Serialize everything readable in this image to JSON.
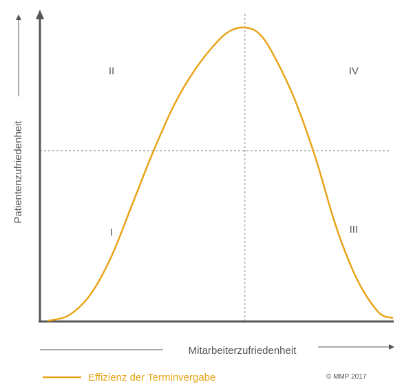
{
  "chart_data": {
    "type": "line",
    "ylabel": "Patientenzufriedenheit",
    "xlabel": "Mitarbeiterzufriedenheit",
    "xlim": [
      0,
      1
    ],
    "ylim": [
      0,
      1
    ],
    "grid": false,
    "reference_lines": {
      "x": 0.58,
      "y": 0.58
    },
    "series": [
      {
        "name": "Effizienz der Terminvergabe",
        "color": "#e8a317",
        "x": [
          0.02,
          0.08,
          0.14,
          0.2,
          0.26,
          0.32,
          0.38,
          0.44,
          0.5,
          0.54,
          0.58,
          0.62,
          0.66,
          0.72,
          0.78,
          0.84,
          0.9,
          0.96,
          1.0
        ],
        "y": [
          0.0,
          0.02,
          0.09,
          0.22,
          0.4,
          0.58,
          0.74,
          0.86,
          0.95,
          0.99,
          1.0,
          0.98,
          0.91,
          0.76,
          0.56,
          0.32,
          0.14,
          0.03,
          0.01
        ]
      }
    ],
    "annotations": [
      {
        "text": "I",
        "x": 0.2,
        "y": 0.29
      },
      {
        "text": "II",
        "x": 0.2,
        "y": 0.84
      },
      {
        "text": "III",
        "x": 0.89,
        "y": 0.3
      },
      {
        "text": "IV",
        "x": 0.89,
        "y": 0.84
      }
    ]
  },
  "legend": {
    "label": "Effizienz der Terminvergabe",
    "color": "#e8a317"
  },
  "copyright": "© MMP 2017",
  "colors": {
    "axis": "#555555",
    "reference": "#888888",
    "curve": "#e8a317"
  }
}
